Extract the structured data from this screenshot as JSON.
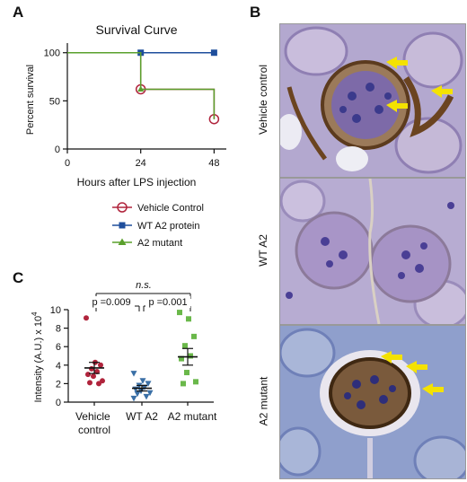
{
  "panels": {
    "a": "A",
    "b": "B",
    "c": "C"
  },
  "chart_data": [
    {
      "type": "line",
      "step": true,
      "title": "Survival Curve",
      "xlabel": "Hours after LPS injection",
      "ylabel": "Percent survival",
      "xlim": [
        0,
        52
      ],
      "ylim": [
        0,
        110
      ],
      "xticks": [
        0,
        24,
        48
      ],
      "yticks": [
        0,
        50,
        100
      ],
      "series": [
        {
          "name": "Vehicle Control",
          "color": "#b0243c",
          "marker": "open-circle",
          "x": [
            0,
            24,
            48
          ],
          "y": [
            100,
            62,
            31
          ],
          "censor_x": [
            24,
            48
          ],
          "censor_y": [
            62,
            31
          ]
        },
        {
          "name": "WT A2 protein",
          "color": "#1e4e9c",
          "marker": "square",
          "x": [
            0,
            24,
            48
          ],
          "y": [
            100,
            100,
            100
          ],
          "censor_x": [
            24,
            48
          ],
          "censor_y": [
            100,
            100
          ]
        },
        {
          "name": "A2 mutant",
          "color": "#5aa02c",
          "marker": "triangle",
          "x": [
            0,
            24,
            48
          ],
          "y": [
            100,
            62,
            31
          ],
          "censor_x": [
            24
          ],
          "censor_y": [
            62
          ]
        }
      ]
    },
    {
      "type": "scatter",
      "xlabel": "",
      "ylabel_main": "Intensity (A.U.) x 10",
      "ylabel_sup": "4",
      "ylim": [
        0,
        10
      ],
      "yticks": [
        0,
        2,
        4,
        6,
        8,
        10
      ],
      "categories": [
        "Vehicle control",
        "WT A2",
        "A2 mutant"
      ],
      "category_lines": [
        [
          "Vehicle",
          "control"
        ],
        [
          "WT A2"
        ],
        [
          "A2 mutant"
        ]
      ],
      "series": [
        {
          "name": "Vehicle control",
          "color": "#b0243c",
          "marker": "circle",
          "values": [
            9.1,
            4.3,
            4.0,
            3.6,
            3.3,
            3.0,
            2.8,
            2.3,
            2.1,
            2.0
          ],
          "mean": 3.7,
          "sem": 0.6
        },
        {
          "name": "WT A2",
          "color": "#3a6fa6",
          "marker": "triangle-down",
          "values": [
            3.1,
            2.3,
            2.0,
            1.8,
            1.6,
            1.4,
            1.2,
            1.0,
            0.9,
            0.6,
            0.4
          ],
          "mean": 1.5,
          "sem": 0.3
        },
        {
          "name": "A2 mutant",
          "color": "#6ab84a",
          "marker": "square",
          "values": [
            9.7,
            9.0,
            7.1,
            6.1,
            5.0,
            4.7,
            3.2,
            2.2,
            2.0
          ],
          "mean": 4.9,
          "sem": 0.9
        }
      ],
      "annotations": {
        "ns": "n.s.",
        "p1": "p =0.009",
        "p2": "p =0.001"
      }
    }
  ],
  "micrographs": [
    {
      "label": "Vehicle control",
      "arrows": 3
    },
    {
      "label": "WT A2",
      "arrows": 0
    },
    {
      "label": "A2 mutant",
      "arrows": 3
    }
  ]
}
